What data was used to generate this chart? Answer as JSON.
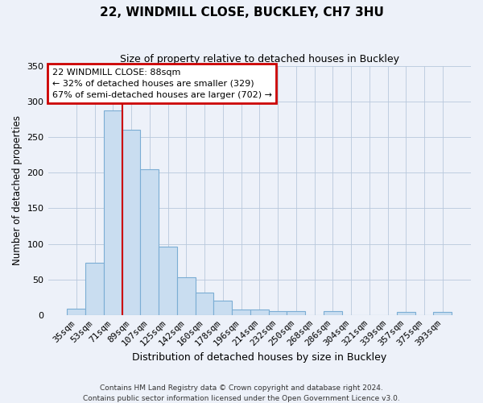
{
  "title": "22, WINDMILL CLOSE, BUCKLEY, CH7 3HU",
  "subtitle": "Size of property relative to detached houses in Buckley",
  "xlabel": "Distribution of detached houses by size in Buckley",
  "ylabel": "Number of detached properties",
  "bar_labels": [
    "35sqm",
    "53sqm",
    "71sqm",
    "89sqm",
    "107sqm",
    "125sqm",
    "142sqm",
    "160sqm",
    "178sqm",
    "196sqm",
    "214sqm",
    "232sqm",
    "250sqm",
    "268sqm",
    "286sqm",
    "304sqm",
    "321sqm",
    "339sqm",
    "357sqm",
    "375sqm",
    "393sqm"
  ],
  "bar_values": [
    9,
    73,
    287,
    260,
    205,
    96,
    53,
    31,
    20,
    8,
    8,
    5,
    5,
    0,
    6,
    0,
    0,
    0,
    4,
    0,
    4
  ],
  "bar_color": "#c9ddf0",
  "bar_edge_color": "#7badd4",
  "vline_x": 2.5,
  "vline_color": "#cc0000",
  "annotation_title": "22 WINDMILL CLOSE: 88sqm",
  "annotation_line1": "← 32% of detached houses are smaller (329)",
  "annotation_line2": "67% of semi-detached houses are larger (702) →",
  "annotation_box_color": "#cc0000",
  "ylim": [
    0,
    350
  ],
  "yticks": [
    0,
    50,
    100,
    150,
    200,
    250,
    300,
    350
  ],
  "footer1": "Contains HM Land Registry data © Crown copyright and database right 2024.",
  "footer2": "Contains public sector information licensed under the Open Government Licence v3.0.",
  "background_color": "#edf1f9",
  "figwidth": 6.0,
  "figheight": 5.0,
  "dpi": 100
}
